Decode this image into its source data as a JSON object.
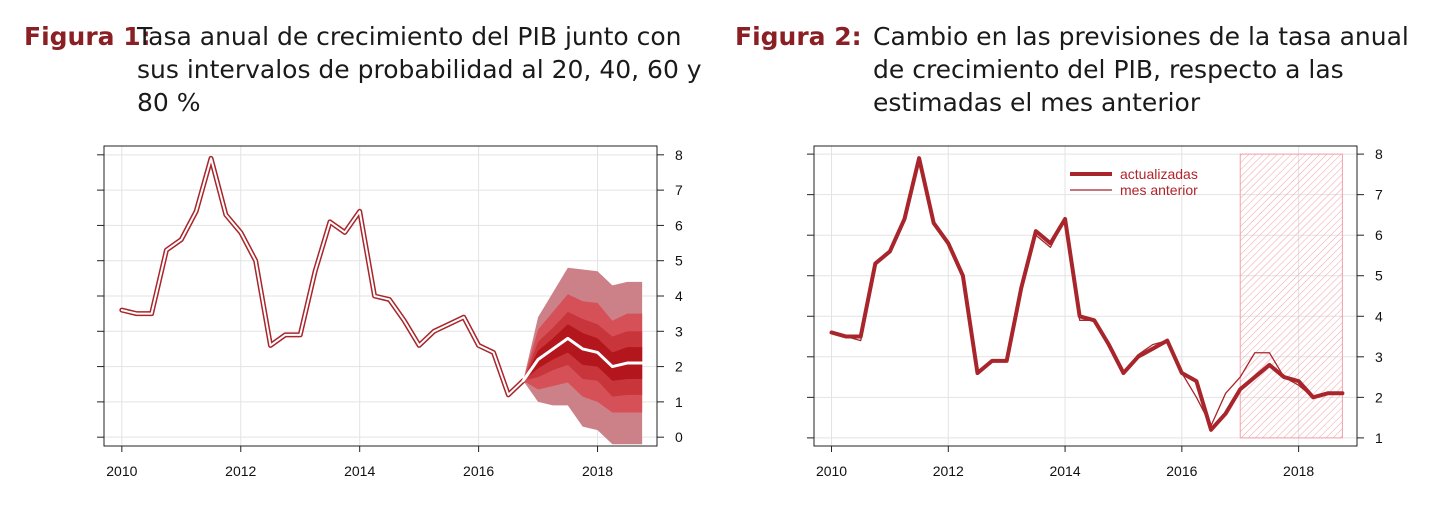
{
  "figures": [
    {
      "label": "Figura 1:",
      "title": "Tasa anual de crecimiento del PIB junto con sus intervalos de probabilidad al 20, 40, 60 y 80 %"
    },
    {
      "label": "Figura 2:",
      "title": "Cambio en las previsiones de la tasa anual de crecimiento del PIB, respecto a las estimadas el mes anterior"
    }
  ],
  "colors": {
    "line": "#a8252b",
    "fan_outer": "#cc8088",
    "fan_2": "#d65058",
    "fan_3": "#c8353a",
    "fan_inner": "#b3161d",
    "hatch": "#f2a0a8",
    "label": "#8a1f24"
  },
  "chart_data": [
    {
      "type": "line",
      "title": "",
      "xlabel": "",
      "ylabel": "",
      "x_ticks": [
        2010,
        2012,
        2014,
        2016,
        2018
      ],
      "y_ticks": [
        0,
        1,
        2,
        3,
        4,
        5,
        6,
        7,
        8
      ],
      "xlim": [
        2009.7,
        2019.0
      ],
      "ylim": [
        -0.25,
        8.25
      ],
      "y_axis_side": "right",
      "grid": true,
      "series": [
        {
          "role": "historical",
          "x": [
            2010.0,
            2010.25,
            2010.5,
            2010.75,
            2011.0,
            2011.25,
            2011.5,
            2011.75,
            2012.0,
            2012.25,
            2012.5,
            2012.75,
            2013.0,
            2013.25,
            2013.5,
            2013.75,
            2014.0,
            2014.25,
            2014.5,
            2014.75,
            2015.0,
            2015.25,
            2015.5,
            2015.75,
            2016.0,
            2016.25,
            2016.5,
            2016.75
          ],
          "values": [
            3.6,
            3.5,
            3.5,
            5.3,
            5.6,
            6.4,
            7.9,
            6.3,
            5.8,
            5.0,
            2.6,
            2.9,
            2.9,
            4.7,
            6.1,
            5.8,
            6.4,
            4.0,
            3.9,
            3.3,
            2.6,
            3.0,
            3.2,
            3.4,
            2.6,
            2.4,
            1.2,
            1.6
          ]
        },
        {
          "role": "forecast",
          "x": [
            2016.75,
            2017.0,
            2017.25,
            2017.5,
            2017.75,
            2018.0,
            2018.25,
            2018.5,
            2018.75
          ],
          "values": [
            1.6,
            2.2,
            2.5,
            2.8,
            2.5,
            2.4,
            2.0,
            2.1,
            2.1
          ]
        }
      ],
      "fan": {
        "x": [
          2016.75,
          2017.0,
          2017.25,
          2017.5,
          2017.75,
          2018.0,
          2018.25,
          2018.5,
          2018.75
        ],
        "bands": [
          {
            "probability": 80,
            "lower": [
              1.6,
              1.0,
              0.9,
              0.9,
              0.3,
              0.2,
              -0.2,
              -0.2,
              -0.2
            ],
            "upper": [
              1.6,
              3.4,
              4.1,
              4.8,
              4.75,
              4.7,
              4.3,
              4.4,
              4.4
            ]
          },
          {
            "probability": 60,
            "lower": [
              1.6,
              1.35,
              1.45,
              1.55,
              1.15,
              1.0,
              0.7,
              0.7,
              0.7
            ],
            "upper": [
              1.6,
              3.05,
              3.55,
              4.05,
              3.85,
              3.8,
              3.3,
              3.5,
              3.5
            ]
          },
          {
            "probability": 40,
            "lower": [
              1.6,
              1.7,
              1.9,
              2.05,
              1.65,
              1.6,
              1.15,
              1.2,
              1.2
            ],
            "upper": [
              1.6,
              2.7,
              3.1,
              3.55,
              3.35,
              3.2,
              2.85,
              3.0,
              3.0
            ]
          },
          {
            "probability": 20,
            "lower": [
              1.6,
              1.95,
              2.2,
              2.4,
              2.05,
              2.0,
              1.6,
              1.65,
              1.65
            ],
            "upper": [
              1.6,
              2.45,
              2.8,
              3.2,
              2.95,
              2.8,
              2.4,
              2.55,
              2.55
            ]
          }
        ]
      }
    },
    {
      "type": "line",
      "title": "",
      "xlabel": "",
      "ylabel": "",
      "x_ticks": [
        2010,
        2012,
        2014,
        2016,
        2018
      ],
      "y_ticks": [
        1,
        2,
        3,
        4,
        5,
        6,
        7,
        8
      ],
      "xlim": [
        2009.7,
        2019.0
      ],
      "ylim": [
        0.8,
        8.2
      ],
      "y_axis_side": "right",
      "grid": true,
      "legend_position": "top-center",
      "forecast_region": {
        "x_start": 2017.0,
        "x_end": 2018.75,
        "y_start": 1.0,
        "y_end": 8.0,
        "style": "hatched"
      },
      "series": [
        {
          "name": "actualizadas",
          "style": "thick",
          "x": [
            2010.0,
            2010.25,
            2010.5,
            2010.75,
            2011.0,
            2011.25,
            2011.5,
            2011.75,
            2012.0,
            2012.25,
            2012.5,
            2012.75,
            2013.0,
            2013.25,
            2013.5,
            2013.75,
            2014.0,
            2014.25,
            2014.5,
            2014.75,
            2015.0,
            2015.25,
            2015.5,
            2015.75,
            2016.0,
            2016.25,
            2016.5,
            2016.75,
            2017.0,
            2017.25,
            2017.5,
            2017.75,
            2018.0,
            2018.25,
            2018.5,
            2018.75
          ],
          "values": [
            3.6,
            3.5,
            3.5,
            5.3,
            5.6,
            6.4,
            7.9,
            6.3,
            5.8,
            5.0,
            2.6,
            2.9,
            2.9,
            4.7,
            6.1,
            5.8,
            6.4,
            4.0,
            3.9,
            3.3,
            2.6,
            3.0,
            3.2,
            3.4,
            2.6,
            2.4,
            1.2,
            1.6,
            2.2,
            2.5,
            2.8,
            2.5,
            2.4,
            2.0,
            2.1,
            2.1
          ]
        },
        {
          "name": "mes anterior",
          "style": "thin",
          "x": [
            2010.0,
            2010.25,
            2010.5,
            2010.75,
            2011.0,
            2011.25,
            2011.5,
            2011.75,
            2012.0,
            2012.25,
            2012.5,
            2012.75,
            2013.0,
            2013.25,
            2013.5,
            2013.75,
            2014.0,
            2014.25,
            2014.5,
            2014.75,
            2015.0,
            2015.25,
            2015.5,
            2015.75,
            2016.0,
            2016.25,
            2016.5,
            2016.75,
            2017.0,
            2017.25,
            2017.5,
            2017.75,
            2018.0,
            2018.25,
            2018.5,
            2018.75
          ],
          "values": [
            3.6,
            3.5,
            3.4,
            5.3,
            5.6,
            6.4,
            7.9,
            6.3,
            5.8,
            5.0,
            2.6,
            2.9,
            2.9,
            4.7,
            6.0,
            5.7,
            6.4,
            3.9,
            3.9,
            3.3,
            2.6,
            3.05,
            3.3,
            3.4,
            2.6,
            2.0,
            1.3,
            2.1,
            2.5,
            3.1,
            3.1,
            2.5,
            2.3,
            2.0,
            2.1,
            2.1
          ]
        }
      ]
    }
  ]
}
